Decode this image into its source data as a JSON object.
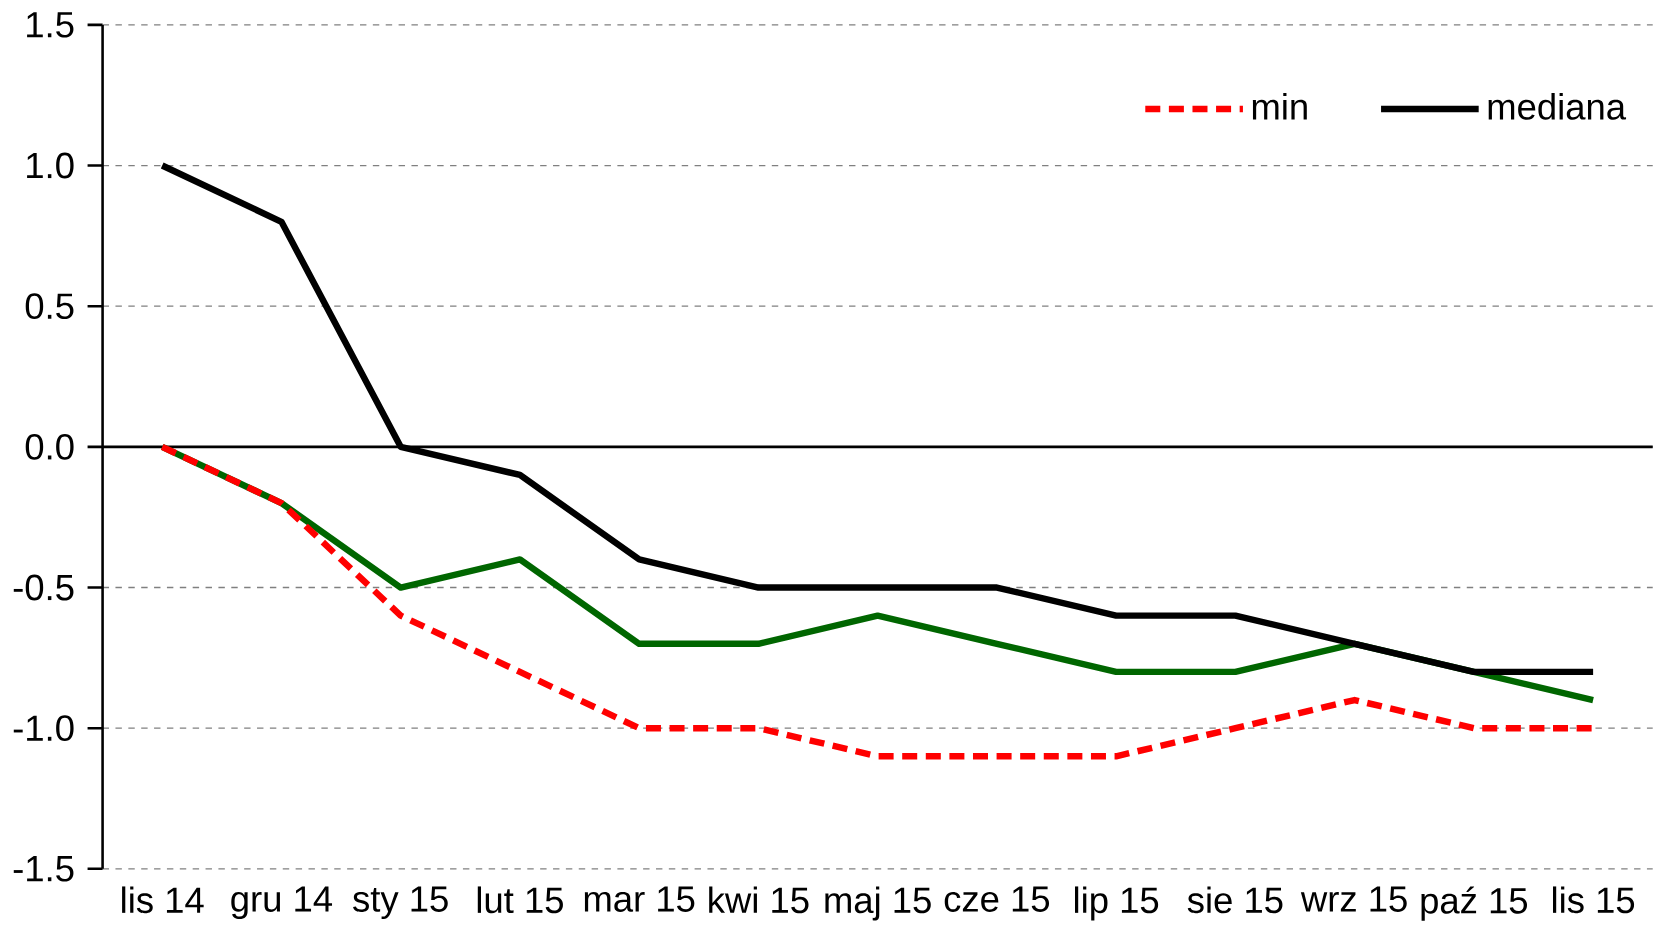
{
  "chart_data": {
    "type": "line",
    "categories": [
      "lis 14",
      "gru 14",
      "sty 15",
      "lut 15",
      "mar 15",
      "kwi 15",
      "maj 15",
      "cze 15",
      "lip 15",
      "sie 15",
      "wrz 15",
      "paź 15",
      "lis 15"
    ],
    "series": [
      {
        "name": "min",
        "color": "#ff0000",
        "line_style": "dashed",
        "values": [
          0,
          -0.2,
          -0.6,
          -0.8,
          -1.0,
          -1.0,
          -1.1,
          -1.1,
          -1.1,
          -1.0,
          -0.9,
          -1.0,
          -1.0
        ]
      },
      {
        "name": "mediana",
        "color": "#000000",
        "line_style": "solid",
        "values": [
          1.0,
          0.8,
          0.0,
          -0.1,
          -0.4,
          -0.5,
          -0.5,
          -0.5,
          -0.6,
          -0.6,
          -0.7,
          -0.8,
          -0.8
        ]
      },
      {
        "color": "#006600",
        "line_style": "solid",
        "values": [
          0,
          -0.2,
          -0.5,
          -0.4,
          -0.7,
          -0.7,
          -0.6,
          -0.7,
          -0.8,
          -0.8,
          -0.7,
          -0.8,
          -0.9
        ]
      }
    ],
    "ylim": [
      -1.5,
      1.5
    ],
    "yticks": [
      -1.5,
      {
        "value": -1,
        "label": "-1.0"
      },
      -0.5,
      {
        "value": 0,
        "label": "0.0"
      },
      0.5,
      {
        "value": 1,
        "label": "1.0"
      },
      1.5
    ],
    "grid": "y",
    "legend": "top right",
    "marker": "none"
  }
}
